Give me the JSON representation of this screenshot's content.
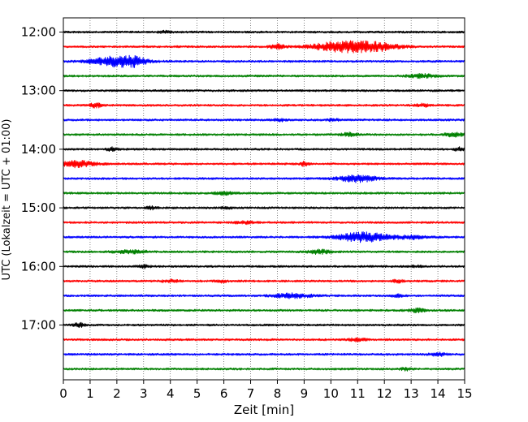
{
  "chart_data": {
    "type": "line",
    "title": "",
    "xlabel": "Zeit  [min]",
    "ylabel": "UTC (Lokalzeit = UTC + 01:00)",
    "xlim": [
      0,
      15
    ],
    "x_ticks": [
      "0",
      "1",
      "2",
      "3",
      "4",
      "5",
      "6",
      "7",
      "8",
      "9",
      "10",
      "11",
      "12",
      "13",
      "14",
      "15"
    ],
    "y_tick_labels": [
      "12:00",
      "13:00",
      "14:00",
      "15:00",
      "16:00",
      "17:00"
    ],
    "grid": "vertical dotted",
    "trace_interval_minutes": 15,
    "start_time": "12:00",
    "end_time": "17:45",
    "trace_colors": [
      "#000000",
      "#ff0000",
      "#0000ff",
      "#008000"
    ],
    "series": [
      {
        "name": "12:00",
        "color": "#000000",
        "events": [
          {
            "t": 3.8,
            "amp": 1.0,
            "w": 0.3
          }
        ]
      },
      {
        "name": "12:15",
        "color": "#ff0000",
        "events": [
          {
            "t": 8.0,
            "amp": 2.5,
            "w": 0.3
          },
          {
            "t": 10.3,
            "amp": 5.5,
            "w": 1.0
          },
          {
            "t": 11.6,
            "amp": 5.0,
            "w": 0.9
          }
        ]
      },
      {
        "name": "12:30",
        "color": "#0000ff",
        "events": [
          {
            "t": 2.0,
            "amp": 6.0,
            "w": 0.9
          },
          {
            "t": 2.7,
            "amp": 3.0,
            "w": 0.4
          }
        ]
      },
      {
        "name": "12:45",
        "color": "#008000",
        "events": [
          {
            "t": 13.4,
            "amp": 2.0,
            "w": 0.5
          }
        ]
      },
      {
        "name": "13:00",
        "color": "#000000",
        "events": []
      },
      {
        "name": "13:15",
        "color": "#ff0000",
        "events": [
          {
            "t": 1.2,
            "amp": 2.5,
            "w": 0.25
          },
          {
            "t": 13.4,
            "amp": 1.5,
            "w": 0.3
          }
        ]
      },
      {
        "name": "13:30",
        "color": "#0000ff",
        "events": [
          {
            "t": 8.1,
            "amp": 1.5,
            "w": 0.2
          },
          {
            "t": 10.1,
            "amp": 1.5,
            "w": 0.2
          }
        ]
      },
      {
        "name": "13:45",
        "color": "#008000",
        "events": [
          {
            "t": 10.7,
            "amp": 2.0,
            "w": 0.3
          },
          {
            "t": 14.6,
            "amp": 2.0,
            "w": 0.4
          }
        ]
      },
      {
        "name": "14:00",
        "color": "#000000",
        "events": [
          {
            "t": 1.8,
            "amp": 2.0,
            "w": 0.2
          },
          {
            "t": 14.8,
            "amp": 2.0,
            "w": 0.2
          }
        ]
      },
      {
        "name": "14:15",
        "color": "#ff0000",
        "events": [
          {
            "t": 0.5,
            "amp": 3.5,
            "w": 0.7
          },
          {
            "t": 9.0,
            "amp": 2.5,
            "w": 0.15
          }
        ]
      },
      {
        "name": "14:30",
        "color": "#0000ff",
        "events": [
          {
            "t": 11.0,
            "amp": 4.0,
            "w": 0.7
          }
        ]
      },
      {
        "name": "14:45",
        "color": "#008000",
        "events": [
          {
            "t": 6.0,
            "amp": 1.5,
            "w": 0.4
          }
        ]
      },
      {
        "name": "15:00",
        "color": "#000000",
        "events": [
          {
            "t": 3.3,
            "amp": 1.5,
            "w": 0.2
          },
          {
            "t": 6.1,
            "amp": 1.5,
            "w": 0.2
          }
        ]
      },
      {
        "name": "15:15",
        "color": "#ff0000",
        "events": [
          {
            "t": 6.8,
            "amp": 1.5,
            "w": 0.4
          }
        ]
      },
      {
        "name": "15:30",
        "color": "#0000ff",
        "events": [
          {
            "t": 11.2,
            "amp": 5.5,
            "w": 0.9
          },
          {
            "t": 13.0,
            "amp": 2.0,
            "w": 0.6
          }
        ]
      },
      {
        "name": "15:45",
        "color": "#008000",
        "events": [
          {
            "t": 2.5,
            "amp": 2.0,
            "w": 0.6
          },
          {
            "t": 9.6,
            "amp": 2.5,
            "w": 0.4
          }
        ]
      },
      {
        "name": "16:00",
        "color": "#000000",
        "events": [
          {
            "t": 3.0,
            "amp": 2.0,
            "w": 0.2
          },
          {
            "t": 13.2,
            "amp": 1.0,
            "w": 0.2
          }
        ]
      },
      {
        "name": "16:15",
        "color": "#ff0000",
        "events": [
          {
            "t": 4.0,
            "amp": 1.5,
            "w": 0.3
          },
          {
            "t": 5.9,
            "amp": 1.5,
            "w": 0.2
          },
          {
            "t": 12.5,
            "amp": 1.5,
            "w": 0.2
          }
        ]
      },
      {
        "name": "16:30",
        "color": "#0000ff",
        "events": [
          {
            "t": 8.6,
            "amp": 2.5,
            "w": 0.7
          },
          {
            "t": 12.5,
            "amp": 1.5,
            "w": 0.2
          }
        ]
      },
      {
        "name": "16:45",
        "color": "#008000",
        "events": [
          {
            "t": 13.2,
            "amp": 2.0,
            "w": 0.3
          }
        ]
      },
      {
        "name": "17:00",
        "color": "#000000",
        "events": [
          {
            "t": 0.6,
            "amp": 2.5,
            "w": 0.2
          }
        ]
      },
      {
        "name": "17:15",
        "color": "#ff0000",
        "events": [
          {
            "t": 11.0,
            "amp": 2.0,
            "w": 0.3
          }
        ]
      },
      {
        "name": "17:30",
        "color": "#0000ff",
        "events": [
          {
            "t": 14.0,
            "amp": 2.0,
            "w": 0.3
          }
        ]
      },
      {
        "name": "17:45",
        "color": "#008000",
        "events": [
          {
            "t": 12.8,
            "amp": 1.5,
            "w": 0.2
          }
        ]
      }
    ]
  }
}
